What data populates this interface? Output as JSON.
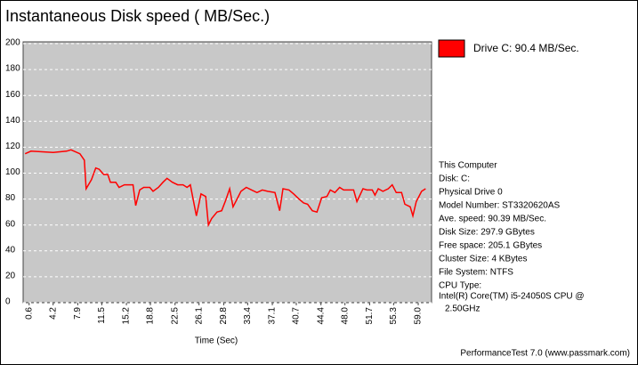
{
  "chart_data": {
    "type": "line",
    "title": "Instantaneous Disk speed ( MB/Sec.)",
    "xlabel": "Time (Sec)",
    "xlim": [
      -0.3,
      61
    ],
    "ylim": [
      0,
      200
    ],
    "xticks": [
      0.6,
      4.2,
      7.9,
      11.5,
      15.2,
      18.8,
      22.5,
      26.1,
      29.8,
      33.4,
      37.1,
      40.7,
      44.4,
      {
        "value": 48,
        "label": "48.0"
      },
      51.7,
      55.3,
      {
        "value": 59,
        "label": "59.0"
      }
    ],
    "yticks": [
      0,
      20,
      40,
      60,
      80,
      100,
      120,
      140,
      160,
      180,
      200
    ],
    "grid": true,
    "x": [
      0,
      0.87,
      4.21,
      6.22,
      6.89,
      8.22,
      8.89,
      9.16,
      9.96,
      10.6,
      11.1,
      11.8,
      12.4,
      12.8,
      13.6,
      14.1,
      14.9,
      15.7,
      16.2,
      16.6,
      17.2,
      17.8,
      18.7,
      19.2,
      20.0,
      20.7,
      21.3,
      22.1,
      22.9,
      23.7,
      24.3,
      24.8,
      25.7,
      26.4,
      27.1,
      27.5,
      28.0,
      28.8,
      29.5,
      30.1,
      30.7,
      31.2,
      31.8,
      32.4,
      33.2,
      34.0,
      34.8,
      35.6,
      36.4,
      37.5,
      38.2,
      38.7,
      39.6,
      40.3,
      41.1,
      41.8,
      42.4,
      43.1,
      43.8,
      44.5,
      45.3,
      45.8,
      46.5,
      47.2,
      47.8,
      48.5,
      49.3,
      49.8,
      50.7,
      51.3,
      52.1,
      52.5,
      53.0,
      53.7,
      54.5,
      55.1,
      55.7,
      56.5,
      57.0,
      57.8,
      58.2,
      58.7,
      59.5,
      60.1
    ],
    "series": [
      {
        "name": "Drive C: 90.4 MB/Sec.",
        "color": "#ff0000",
        "values": [
          115,
          117,
          116,
          117,
          118,
          115,
          110,
          88,
          95,
          104,
          103,
          99,
          99,
          93,
          93,
          89,
          91,
          91,
          91,
          75,
          87,
          89,
          89,
          86,
          89,
          93,
          96,
          93,
          91,
          91,
          89,
          91,
          67,
          84,
          82,
          60,
          65,
          70,
          71,
          79,
          88,
          74,
          80,
          86,
          89,
          87,
          85,
          87,
          86,
          85,
          71,
          88,
          87,
          84,
          80,
          77,
          76,
          71,
          70,
          81,
          82,
          87,
          85,
          89,
          87,
          87,
          87,
          78,
          88,
          87,
          87,
          83,
          88,
          86,
          88,
          91,
          85,
          85,
          76,
          74,
          67,
          78,
          86,
          88
        ]
      }
    ],
    "info_lines": [
      "This Computer",
      "Disk: C:",
      "Physical Drive 0",
      "Model Number: ST3320620AS",
      "Ave. speed: 90.39 MB/Sec.",
      "Disk Size: 297.9 GBytes",
      "Free space: 205.1 GBytes",
      "Cluster Size: 4 KBytes",
      "File System: NTFS",
      "CPU Type:",
      "Intel(R) Core(TM) i5-24050S CPU @",
      "2.50GHz"
    ],
    "footer": "PerformanceTest 7.0 (www.passmark.com)"
  }
}
